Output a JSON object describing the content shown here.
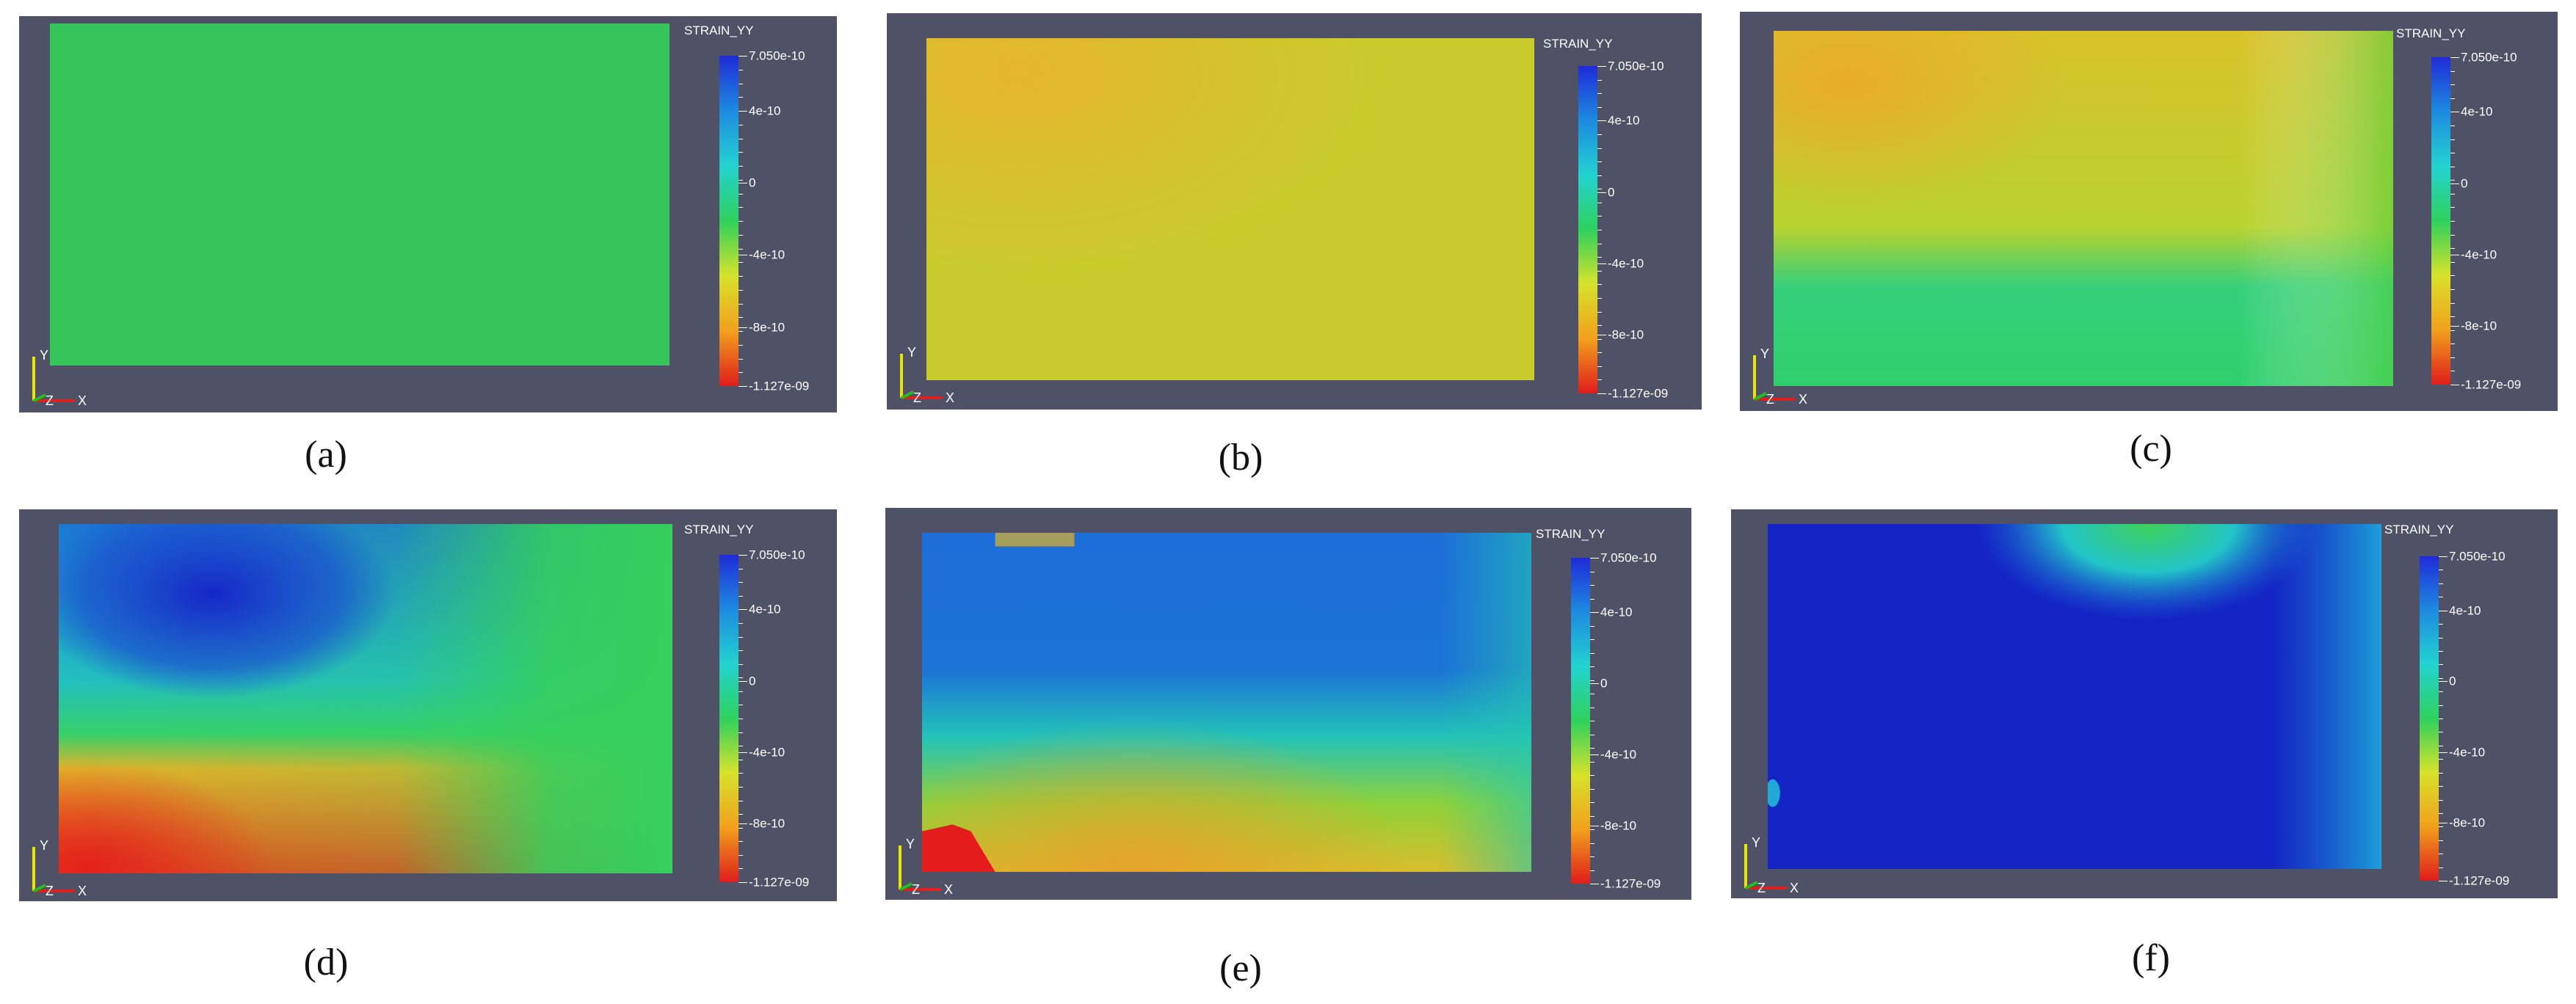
{
  "colorbar": {
    "title": "STRAIN_YY",
    "labels": [
      "7.050e-10",
      "4e-10",
      "0",
      "-4e-10",
      "-8e-10",
      "-1.127e-09"
    ],
    "label_values": [
      7.05e-10,
      4e-10,
      0,
      -4e-10,
      -8e-10,
      -1.127e-09
    ],
    "gradient": [
      "#1f2bd8",
      "#1d8be0",
      "#22d3d0",
      "#2ed15c",
      "#d8e22a",
      "#f2a01c",
      "#e01c1c"
    ]
  },
  "axes": {
    "y": "Y",
    "z": "Z",
    "x": "X"
  },
  "panels": [
    {
      "caption": "(a)",
      "label_variant": "0"
    },
    {
      "caption": "(b)",
      "label_variant": "0"
    },
    {
      "caption": "(c)",
      "label_variant": "0"
    },
    {
      "caption": "(d)",
      "label_variant": "0"
    },
    {
      "caption": "(e)",
      "label_variant": "0"
    },
    {
      "caption": "(f)",
      "label_variant": "0"
    }
  ],
  "colors": {
    "background": "#4f5167",
    "foreground": "#ffffff"
  }
}
